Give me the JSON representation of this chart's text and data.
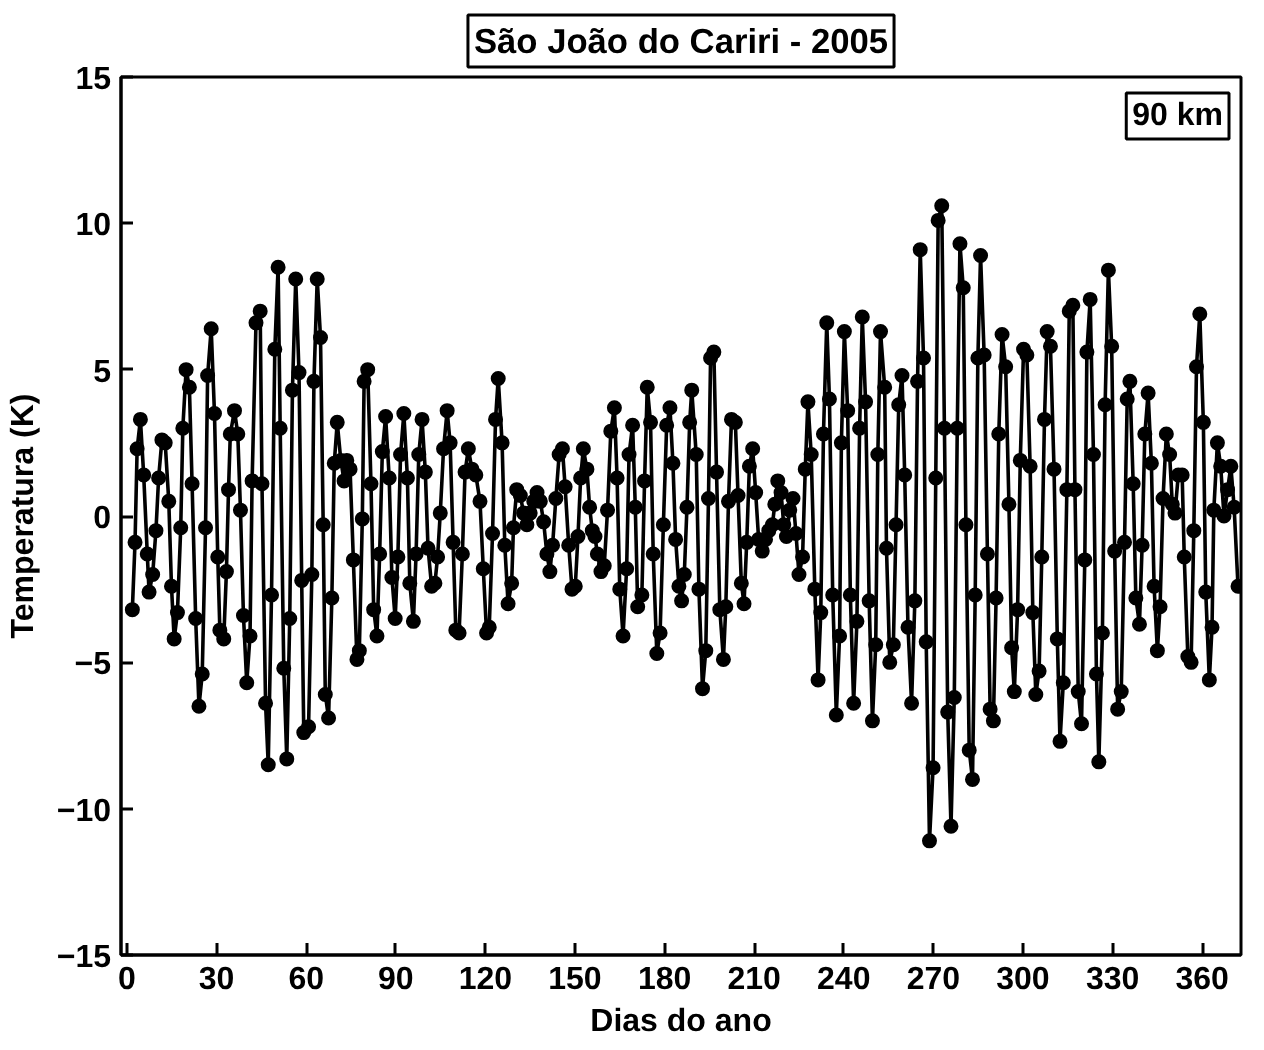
{
  "chart_data": {
    "type": "line",
    "title": "São João do Cariri - 2005",
    "xlabel": "Dias do ano",
    "ylabel": "Temperatura (K)",
    "annotations": [
      "90 km"
    ],
    "xlim": [
      -2,
      373
    ],
    "ylim": [
      -15,
      15
    ],
    "xticks": [
      0,
      30,
      60,
      90,
      120,
      150,
      180,
      210,
      240,
      270,
      300,
      330,
      360
    ],
    "yticks": [
      -15,
      -10,
      -5,
      0,
      5,
      10,
      15
    ],
    "grid": false,
    "marker": "circle",
    "line_style": "solid",
    "series": [
      {
        "color": "#000000",
        "x": [
          1.8,
          2.7,
          3.4,
          4.5,
          5.6,
          6.8,
          7.4,
          8.6,
          9.7,
          10.6,
          11.7,
          12.8,
          14,
          14.9,
          15.8,
          16.9,
          18,
          18.7,
          19.8,
          20.9,
          21.8,
          23,
          24.1,
          25.2,
          26.3,
          27,
          28.2,
          29.3,
          30.4,
          31.1,
          32.4,
          33.3,
          34,
          34.6,
          36,
          37.1,
          38,
          39,
          40.1,
          41.2,
          41.9,
          43.2,
          44.6,
          45.2,
          46.4,
          47.3,
          48.4,
          49.5,
          50.6,
          51.3,
          52.5,
          53.5,
          54.5,
          55.4,
          56.5,
          57.6,
          58.5,
          59.2,
          60.8,
          61.9,
          62.6,
          63.7,
          64.8,
          65.7,
          66.4,
          67.5,
          68.6,
          69.4,
          70.4,
          71.6,
          72.7,
          73.6,
          74.7,
          75.8,
          77,
          77.8,
          78.8,
          79.4,
          80.6,
          81.7,
          82.6,
          83.7,
          84.6,
          85.5,
          86.6,
          87.8,
          88.7,
          89.8,
          90.7,
          91.6,
          92.7,
          93.9,
          94.7,
          95.9,
          96.8,
          97.7,
          98.8,
          99.9,
          100.8,
          102,
          103.1,
          104,
          104.9,
          106,
          107.2,
          108.2,
          109.2,
          110.1,
          111.2,
          112.3,
          113.2,
          114.3,
          115.5,
          116.8,
          118.2,
          119.3,
          120.4,
          121.3,
          122.4,
          123.4,
          124.3,
          125.6,
          126.5,
          127.6,
          128.8,
          129.4,
          130.5,
          131.7,
          132.8,
          133.9,
          135,
          136.2,
          137.3,
          138.4,
          139.5,
          140.6,
          141.6,
          142.5,
          143.6,
          144.7,
          145.8,
          146.7,
          147.9,
          149,
          150.1,
          151,
          151.9,
          152.8,
          154,
          154.9,
          155.8,
          156.7,
          157.5,
          158.7,
          159.8,
          160.9,
          162,
          163.2,
          164.1,
          165,
          166.1,
          167.3,
          168.1,
          169.3,
          170.2,
          171,
          172.4,
          173.3,
          174.2,
          175.3,
          176.2,
          177.4,
          178.5,
          179.6,
          180.7,
          181.8,
          182.8,
          183.7,
          184.8,
          185.7,
          186.6,
          187.5,
          188.4,
          189.1,
          190.6,
          191.5,
          192.7,
          193.8,
          194.7,
          195.4,
          196.5,
          197.4,
          198.5,
          199.7,
          200.5,
          201.4,
          202.4,
          203.7,
          204.6,
          205.7,
          206.6,
          207.5,
          208.4,
          209.5,
          210.5,
          211.5,
          212.7,
          213.8,
          214.9,
          216.1,
          216.9,
          217.9,
          219,
          219.9,
          220.8,
          221.9,
          223,
          224,
          225,
          226.2,
          227.1,
          228,
          229.1,
          230.3,
          231.4,
          232.3,
          233.2,
          234.3,
          235.2,
          236.3,
          237.5,
          238.6,
          239.2,
          240.2,
          241.3,
          242.2,
          243.3,
          244.4,
          245.3,
          246.2,
          247.3,
          248.5,
          249.6,
          250.7,
          251.4,
          252.3,
          253.7,
          254.3,
          255.4,
          256.6,
          257.5,
          258.4,
          259.5,
          260.4,
          261.5,
          262.7,
          263.8,
          264.7,
          265.6,
          266.7,
          267.6,
          268.7,
          269.9,
          270.8,
          271.6,
          272.8,
          273.7,
          274.8,
          275.9,
          277,
          278,
          278.9,
          280,
          280.9,
          282,
          283.1,
          284,
          284.9,
          285.8,
          287,
          288.1,
          289,
          290.1,
          291,
          291.9,
          293,
          294.2,
          295.3,
          296.2,
          297.1,
          298.2,
          299.1,
          300.2,
          301.3,
          302.4,
          303.3,
          304.3,
          305.4,
          306.3,
          307.2,
          308.1,
          309.2,
          310.4,
          311.5,
          312.4,
          313.5,
          314.7,
          315.5,
          316.7,
          317.4,
          318.5,
          319.6,
          320.7,
          321.4,
          322.5,
          323.6,
          324.6,
          325.4,
          326.6,
          327.5,
          328.6,
          329.7,
          330.7,
          331.7,
          332.9,
          334,
          334.9,
          335.8,
          336.9,
          337.8,
          339,
          339.9,
          340.8,
          341.9,
          343,
          343.9,
          345,
          345.9,
          346.9,
          348,
          349.1,
          350,
          350.9,
          352,
          353.3,
          354,
          355.2,
          356.3,
          357.2,
          358.1,
          359.2,
          360.4,
          361.2,
          362.4,
          363.3,
          363.9,
          365.1,
          366.2,
          367.3,
          368.5,
          369.6,
          370.7,
          372
        ],
        "values": [
          -3.2,
          -0.9,
          2.3,
          3.3,
          1.4,
          -1.3,
          -2.6,
          -2.0,
          -0.5,
          1.3,
          2.6,
          2.5,
          0.5,
          -2.4,
          -4.2,
          -3.3,
          -0.4,
          3.0,
          5.0,
          4.4,
          1.1,
          -3.5,
          -6.5,
          -5.4,
          -0.4,
          4.8,
          6.4,
          3.5,
          -1.4,
          -3.9,
          -4.2,
          -1.9,
          0.9,
          2.8,
          3.6,
          2.8,
          0.2,
          -3.4,
          -5.7,
          -4.1,
          1.2,
          6.6,
          7.0,
          1.1,
          -6.4,
          -8.5,
          -2.7,
          5.7,
          8.5,
          3.0,
          -5.2,
          -8.3,
          -3.5,
          4.3,
          8.1,
          4.9,
          -2.2,
          -7.4,
          -7.2,
          -2.0,
          4.6,
          8.1,
          6.1,
          -0.3,
          -6.1,
          -6.9,
          -2.8,
          1.8,
          3.2,
          1.9,
          1.2,
          1.9,
          1.6,
          -1.5,
          -4.9,
          -4.6,
          -0.1,
          4.6,
          5.0,
          1.1,
          -3.2,
          -4.1,
          -1.3,
          2.2,
          3.4,
          1.3,
          -2.1,
          -3.5,
          -1.4,
          2.1,
          3.5,
          1.3,
          -2.3,
          -3.6,
          -1.3,
          2.1,
          3.3,
          1.5,
          -1.1,
          -2.4,
          -2.3,
          -1.4,
          0.1,
          2.3,
          3.6,
          2.5,
          -0.9,
          -3.9,
          -4.0,
          -1.3,
          1.5,
          2.3,
          1.6,
          1.4,
          0.5,
          -1.8,
          -4.0,
          -3.8,
          -0.6,
          3.3,
          4.7,
          2.5,
          -1.0,
          -3.0,
          -2.3,
          -0.4,
          0.9,
          0.7,
          0.1,
          -0.3,
          0.1,
          0.5,
          0.8,
          0.5,
          -0.2,
          -1.3,
          -1.9,
          -1.0,
          0.6,
          2.1,
          2.3,
          1.0,
          -1.0,
          -2.5,
          -2.4,
          -0.7,
          1.3,
          2.3,
          1.6,
          0.3,
          -0.5,
          -0.7,
          -1.3,
          -1.9,
          -1.7,
          0.2,
          2.9,
          3.7,
          1.3,
          -2.5,
          -4.1,
          -1.8,
          2.1,
          3.1,
          0.3,
          -3.1,
          -2.7,
          1.2,
          4.4,
          3.2,
          -1.3,
          -4.7,
          -4.0,
          -0.3,
          3.1,
          3.7,
          1.8,
          -0.8,
          -2.4,
          -2.9,
          -2.0,
          0.3,
          3.2,
          4.3,
          2.1,
          -2.5,
          -5.9,
          -4.6,
          0.6,
          5.4,
          5.6,
          1.5,
          -3.2,
          -4.9,
          -3.1,
          0.5,
          3.3,
          3.2,
          0.7,
          -2.3,
          -3.0,
          -0.9,
          1.7,
          2.3,
          0.8,
          -0.8,
          -1.2,
          -0.8,
          -0.5,
          -0.3,
          0.4,
          1.2,
          0.8,
          -0.3,
          -0.7,
          0.2,
          0.6,
          -0.6,
          -2.0,
          -1.4,
          1.6,
          3.9,
          2.1,
          -2.5,
          -5.6,
          -3.3,
          2.8,
          6.6,
          4.0,
          -2.7,
          -6.8,
          -4.1,
          2.5,
          6.3,
          3.6,
          -2.7,
          -6.4,
          -3.6,
          3.0,
          6.8,
          3.9,
          -2.9,
          -7.0,
          -4.4,
          2.1,
          6.3,
          4.4,
          -1.1,
          -5.0,
          -4.4,
          -0.3,
          3.8,
          4.8,
          1.4,
          -3.8,
          -6.4,
          -2.9,
          4.6,
          9.1,
          5.4,
          -4.3,
          -11.1,
          -8.6,
          1.3,
          10.1,
          10.6,
          3.0,
          -6.7,
          -10.6,
          -6.2,
          3.0,
          9.3,
          7.8,
          -0.3,
          -8.0,
          -9.0,
          -2.7,
          5.4,
          8.9,
          5.5,
          -1.3,
          -6.6,
          -7.0,
          -2.8,
          2.8,
          6.2,
          5.1,
          0.4,
          -4.5,
          -6.0,
          -3.2,
          1.9,
          5.7,
          5.5,
          1.7,
          -3.3,
          -6.1,
          -5.3,
          -1.4,
          3.3,
          6.3,
          5.8,
          1.6,
          -4.2,
          -7.7,
          -5.7,
          0.9,
          7.0,
          7.2,
          0.9,
          -6.0,
          -7.1,
          -1.5,
          5.6,
          7.4,
          2.1,
          -5.4,
          -8.4,
          -4.0,
          3.8,
          8.4,
          5.8,
          -1.2,
          -6.6,
          -6.0,
          -0.9,
          4.0,
          4.6,
          1.1,
          -2.8,
          -3.7,
          -1.0,
          2.8,
          4.2,
          1.8,
          -2.4,
          -4.6,
          -3.1,
          0.6,
          2.8,
          2.1,
          0.4,
          0.1,
          1.4,
          1.4,
          -1.4,
          -4.8,
          -5.0,
          -0.5,
          5.1,
          6.9,
          3.2,
          -2.6,
          -5.6,
          -3.8,
          0.2,
          2.5,
          1.7,
          0.0,
          0.9,
          1.7,
          0.3,
          -2.4
        ]
      }
    ]
  }
}
